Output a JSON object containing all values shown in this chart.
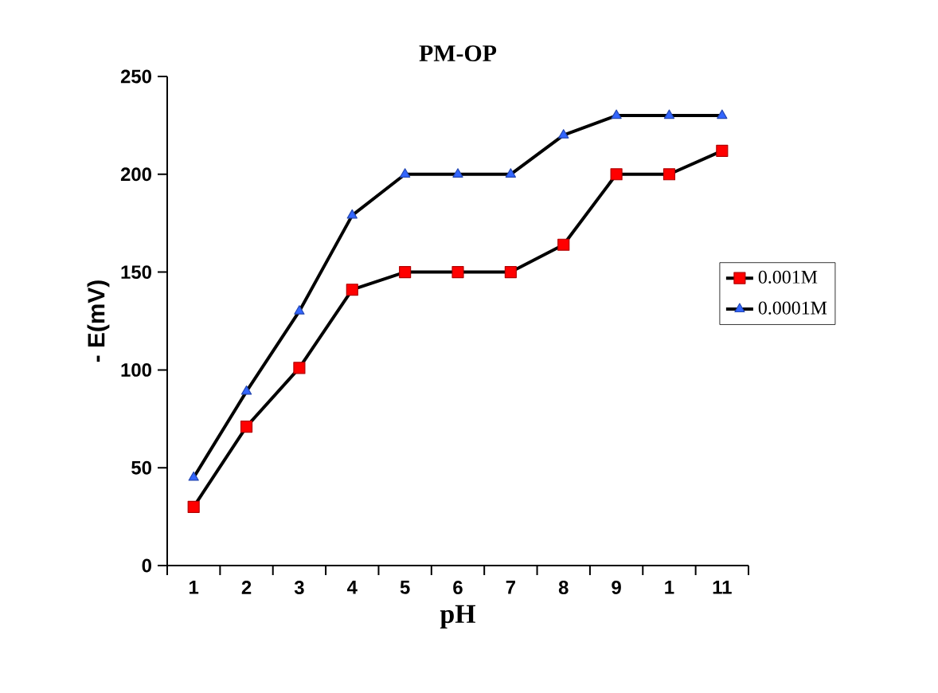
{
  "chart_data": {
    "type": "line",
    "title": "PM-OP",
    "xlabel": "pH",
    "ylabel": "- E(mV)",
    "categories": [
      "1",
      "2",
      "3",
      "4",
      "5",
      "6",
      "7",
      "8",
      "9",
      "1",
      "11"
    ],
    "series": [
      {
        "name": "0.001M",
        "color": "#ff0000",
        "marker": "square",
        "values": [
          30,
          71,
          101,
          141,
          150,
          150,
          150,
          164,
          200,
          200,
          212
        ]
      },
      {
        "name": "0.0001M",
        "color": "#3366ff",
        "marker": "triangle",
        "values": [
          45,
          89,
          130,
          179,
          200,
          200,
          200,
          220,
          230,
          230,
          230
        ]
      }
    ],
    "ylim": [
      0,
      250
    ],
    "yticks": [
      0,
      50,
      100,
      150,
      200,
      250
    ],
    "grid": false,
    "legend": "right",
    "line_style": "solid"
  }
}
